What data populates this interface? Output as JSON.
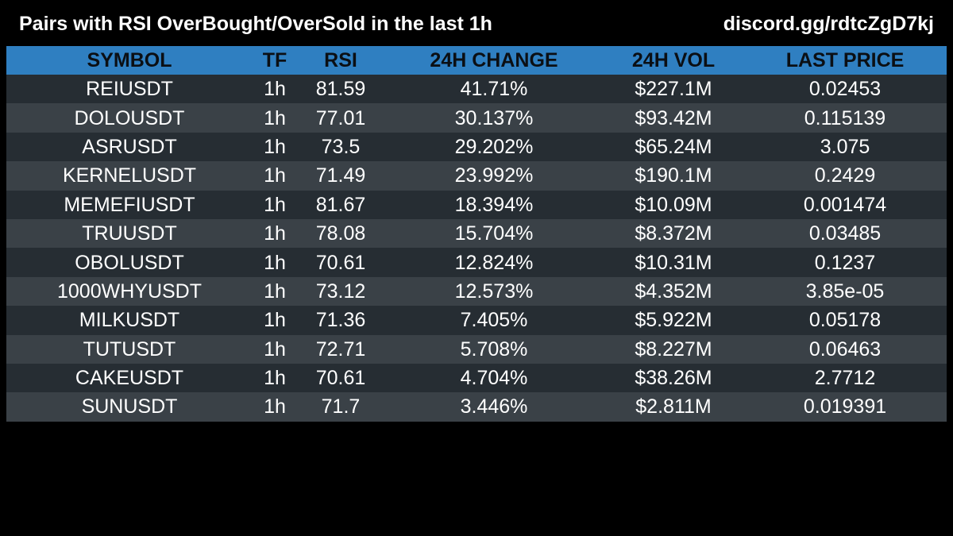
{
  "header": {
    "title": "Pairs with RSI OverBought/OverSold in the last 1h",
    "link": "discord.gg/rdtcZgD7kj"
  },
  "table": {
    "columns": [
      "SYMBOL",
      "TF",
      "RSI",
      "24H CHANGE",
      "24H VOL",
      "LAST PRICE"
    ],
    "rows": [
      [
        "REIUSDT",
        "1h",
        "81.59",
        "41.71%",
        "$227.1M",
        "0.02453"
      ],
      [
        "DOLOUSDT",
        "1h",
        "77.01",
        "30.137%",
        "$93.42M",
        "0.115139"
      ],
      [
        "ASRUSDT",
        "1h",
        "73.5",
        "29.202%",
        "$65.24M",
        "3.075"
      ],
      [
        "KERNELUSDT",
        "1h",
        "71.49",
        "23.992%",
        "$190.1M",
        "0.2429"
      ],
      [
        "MEMEFIUSDT",
        "1h",
        "81.67",
        "18.394%",
        "$10.09M",
        "0.001474"
      ],
      [
        "TRUUSDT",
        "1h",
        "78.08",
        "15.704%",
        "$8.372M",
        "0.03485"
      ],
      [
        "OBOLUSDT",
        "1h",
        "70.61",
        "12.824%",
        "$10.31M",
        "0.1237"
      ],
      [
        "1000WHYUSDT",
        "1h",
        "73.12",
        "12.573%",
        "$4.352M",
        "3.85e-05"
      ],
      [
        "MILKUSDT",
        "1h",
        "71.36",
        "7.405%",
        "$5.922M",
        "0.05178"
      ],
      [
        "TUTUSDT",
        "1h",
        "72.71",
        "5.708%",
        "$8.227M",
        "0.06463"
      ],
      [
        "CAKEUSDT",
        "1h",
        "70.61",
        "4.704%",
        "$38.26M",
        "2.7712"
      ],
      [
        "SUNUSDT",
        "1h",
        "71.7",
        "3.446%",
        "$2.811M",
        "0.019391"
      ]
    ]
  },
  "colors": {
    "background": "#000000",
    "header_row": "#2f7fc1",
    "row_dark": "#262d33",
    "row_light": "#3a4147",
    "header_text": "#0b0f14",
    "text": "#ffffff"
  }
}
